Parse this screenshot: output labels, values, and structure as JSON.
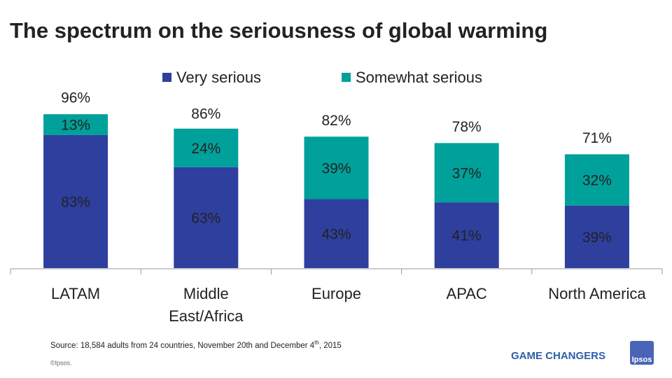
{
  "chart_data": {
    "type": "stacked-bar",
    "title": "The spectrum on the seriousness of global warming",
    "categories": [
      "LATAM",
      "Middle East/Africa",
      "Europe",
      "APAC",
      "North America"
    ],
    "series": [
      {
        "name": "Very serious",
        "color": "#2e3f9e",
        "values": [
          83,
          63,
          43,
          41,
          39
        ],
        "value_labels": [
          "83%",
          "63%",
          "43%",
          "41%",
          "39%"
        ]
      },
      {
        "name": "Somewhat serious",
        "color": "#00a09b",
        "values": [
          13,
          24,
          39,
          37,
          32
        ],
        "value_labels": [
          "13%",
          "24%",
          "39%",
          "37%",
          "32%"
        ]
      }
    ],
    "totals": {
      "values": [
        96,
        86,
        82,
        78,
        71
      ],
      "value_labels": [
        "96%",
        "86%",
        "82%",
        "78%",
        "71%"
      ]
    }
  },
  "footer": {
    "source": {
      "text": "Source:  18,584 adults from 24 countries, November 20th and December 4",
      "sup": "th",
      "after": ", 2015"
    },
    "copyright": "©Ipsos.",
    "tagline": "GAME CHANGERS",
    "logo": "Ipsos"
  }
}
